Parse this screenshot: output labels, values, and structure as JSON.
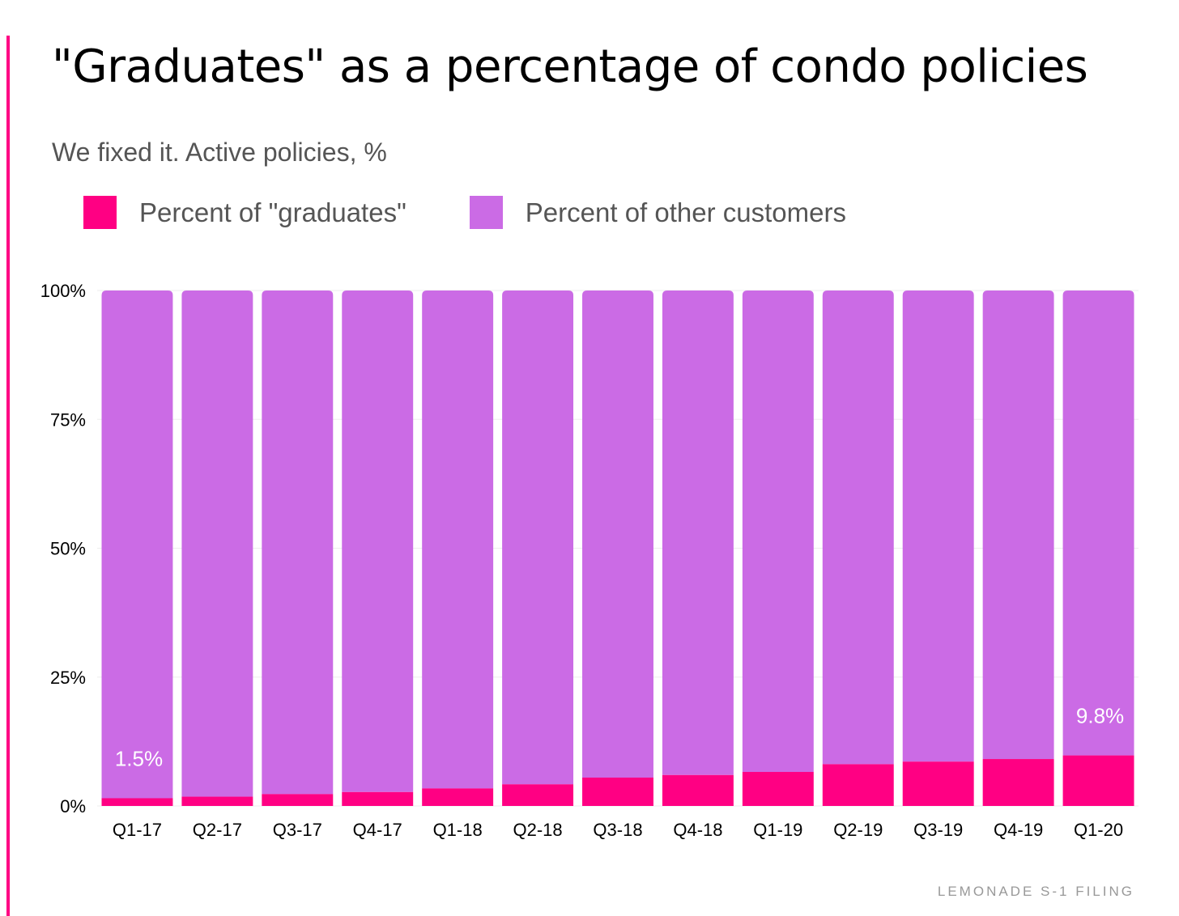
{
  "title": "\"Graduates\" as a percentage of condo policies",
  "subtitle": "We fixed it. Active policies, %",
  "source": "LEMONADE S-1 FILING",
  "colors": {
    "accent": "#ff0083",
    "graduates": "#ff0083",
    "other": "#cb6be5"
  },
  "legend": {
    "graduates": "Percent of \"graduates\"",
    "other": "Percent of other customers"
  },
  "chart_data": {
    "type": "bar",
    "stacked": true,
    "title": "\"Graduates\" as a percentage of condo policies",
    "subtitle": "We fixed it. Active policies, %",
    "categories": [
      "Q1-17",
      "Q2-17",
      "Q3-17",
      "Q4-17",
      "Q1-18",
      "Q2-18",
      "Q3-18",
      "Q4-18",
      "Q1-19",
      "Q2-19",
      "Q3-19",
      "Q4-19",
      "Q1-20"
    ],
    "series": [
      {
        "name": "Percent of \"graduates\"",
        "color": "#ff0083",
        "values": [
          1.5,
          1.8,
          2.3,
          2.7,
          3.4,
          4.2,
          5.5,
          6.0,
          6.6,
          8.1,
          8.6,
          9.1,
          9.8
        ]
      },
      {
        "name": "Percent of other customers",
        "color": "#cb6be5",
        "values": [
          98.5,
          98.2,
          97.7,
          97.3,
          96.6,
          95.8,
          94.5,
          94.0,
          93.4,
          91.9,
          91.4,
          90.9,
          90.2
        ]
      }
    ],
    "data_labels": [
      {
        "category": "Q1-17",
        "text": "1.5%"
      },
      {
        "category": "Q1-20",
        "text": "9.8%"
      }
    ],
    "ylim": [
      0,
      100
    ],
    "yticks": [
      "0%",
      "25%",
      "50%",
      "75%",
      "100%"
    ],
    "ytick_values": [
      0,
      25,
      50,
      75,
      100
    ],
    "grid": true,
    "legend_position": "top-left"
  }
}
